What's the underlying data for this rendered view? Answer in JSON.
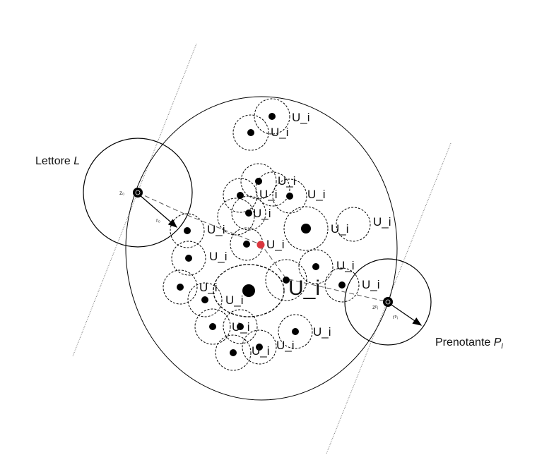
{
  "labels": {
    "lettore_prefix": "Lettore ",
    "lettore_var": "L",
    "prenotante_prefix": "Prenotante ",
    "prenotante_var": "P",
    "prenotante_sub": "i",
    "z0": "z₀",
    "r0": "r₀",
    "zpi": "zᵖᵢ",
    "rpi": "rᵖᵢ",
    "user": "U_i"
  },
  "colors": {
    "line": "#000000",
    "dot": "#000000",
    "target_dot": "#d9363e",
    "dashed": "#555555"
  }
}
